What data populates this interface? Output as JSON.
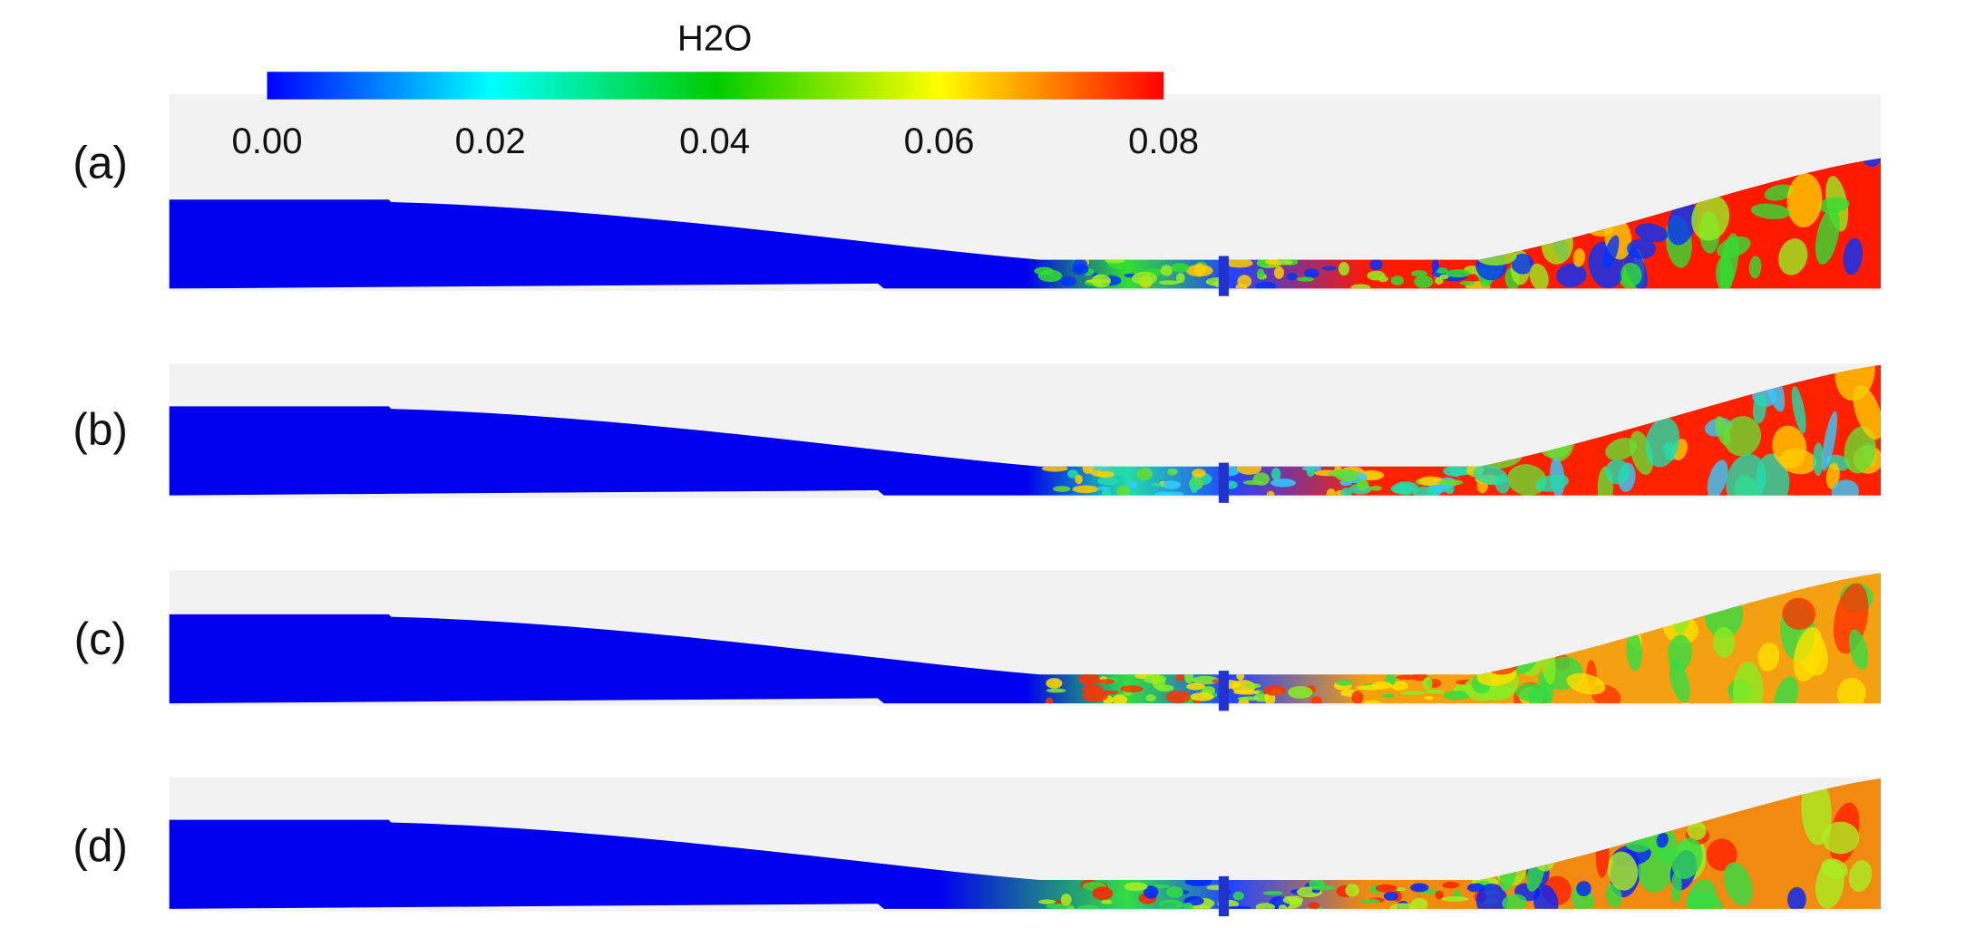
{
  "colorbar": {
    "title": "H2O",
    "ticks": [
      "0.00",
      "0.02",
      "0.04",
      "0.06",
      "0.08"
    ],
    "range": [
      0.0,
      0.08
    ],
    "colors": [
      "#0000ff",
      "#00ffff",
      "#00cc00",
      "#ffff00",
      "#ff0000"
    ]
  },
  "panels": [
    {
      "label": "(a)",
      "hot_color": "#ff1a00",
      "blob_colors": [
        "#33dd33",
        "#99ee22",
        "#ffcc00",
        "#0033ff"
      ]
    },
    {
      "label": "(b)",
      "hot_color": "#ff2200",
      "blob_colors": [
        "#22ddaa",
        "#33ccff",
        "#66dd33",
        "#ffcc00"
      ]
    },
    {
      "label": "(c)",
      "hot_color": "#f5a010",
      "blob_colors": [
        "#33dd44",
        "#88ee22",
        "#ff3300",
        "#ffe000"
      ]
    },
    {
      "label": "(d)",
      "hot_color": "#f08a10",
      "blob_colors": [
        "#33dd44",
        "#ff2200",
        "#aaee22",
        "#0022ff"
      ]
    }
  ],
  "background_color": "#f2f2f2",
  "inlet_color": "#0000ee"
}
